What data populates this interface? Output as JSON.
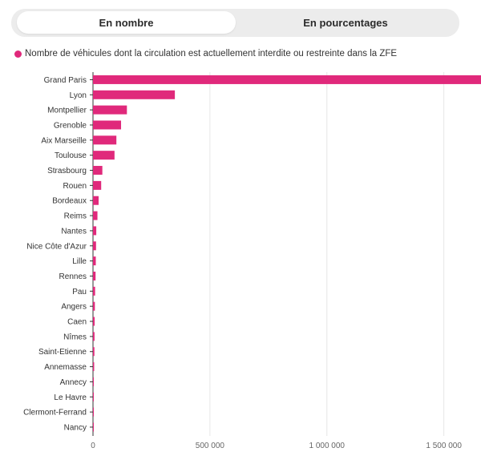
{
  "toggle": {
    "option_count": "En nombre",
    "option_percent": "En pourcentages",
    "selected": "En nombre"
  },
  "colors": {
    "bar": "#e0297b",
    "grid": "#e6e6e6",
    "axis": "#333333",
    "text": "#333333",
    "tick_text": "#666666"
  },
  "chart_data": {
    "type": "bar",
    "orientation": "horizontal",
    "title": "",
    "xlabel": "",
    "ylabel": "",
    "legend": "top-left",
    "grid": true,
    "xlim": [
      0,
      1700000
    ],
    "xticks": [
      0,
      500000,
      1000000,
      1500000
    ],
    "xtick_labels": [
      "0",
      "500 000",
      "1 000 000",
      "1 500 000"
    ],
    "series": [
      {
        "name": "Nombre de véhicules dont la circulation est actuellement interdite ou restreinte dans la ZFE",
        "values": [
          1665000,
          350000,
          145000,
          120000,
          100000,
          92000,
          40000,
          35000,
          24000,
          19000,
          14000,
          13000,
          12000,
          11000,
          9000,
          8000,
          7000,
          6500,
          6000,
          5000,
          3000,
          2000,
          1500,
          1000
        ]
      }
    ],
    "categories": [
      "Grand Paris",
      "Lyon",
      "Montpellier",
      "Grenoble",
      "Aix Marseille",
      "Toulouse",
      "Strasbourg",
      "Rouen",
      "Bordeaux",
      "Reims",
      "Nantes",
      "Nice Côte d'Azur",
      "Lille",
      "Rennes",
      "Pau",
      "Angers",
      "Caen",
      "Nîmes",
      "Saint-Etienne",
      "Annemasse",
      "Annecy",
      "Le Havre",
      "Clermont-Ferrand",
      "Nancy"
    ]
  }
}
